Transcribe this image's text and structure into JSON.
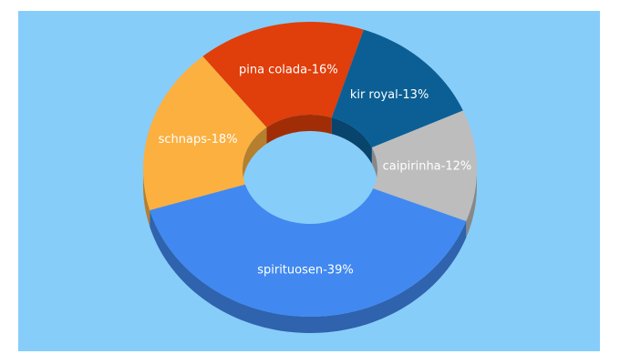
{
  "chart_data": {
    "type": "donut3d",
    "values": [
      16,
      13,
      12,
      39,
      18
    ],
    "value_labels": [
      "pina colada-16%",
      "kir royal-13%",
      "caipirinha-12%",
      "spirituosen-39%",
      "schnaps-18%"
    ],
    "colors": [
      "#e03e0a",
      "#0b5f94",
      "#bdbdbd",
      "#4189f0",
      "#fbb040"
    ]
  }
}
